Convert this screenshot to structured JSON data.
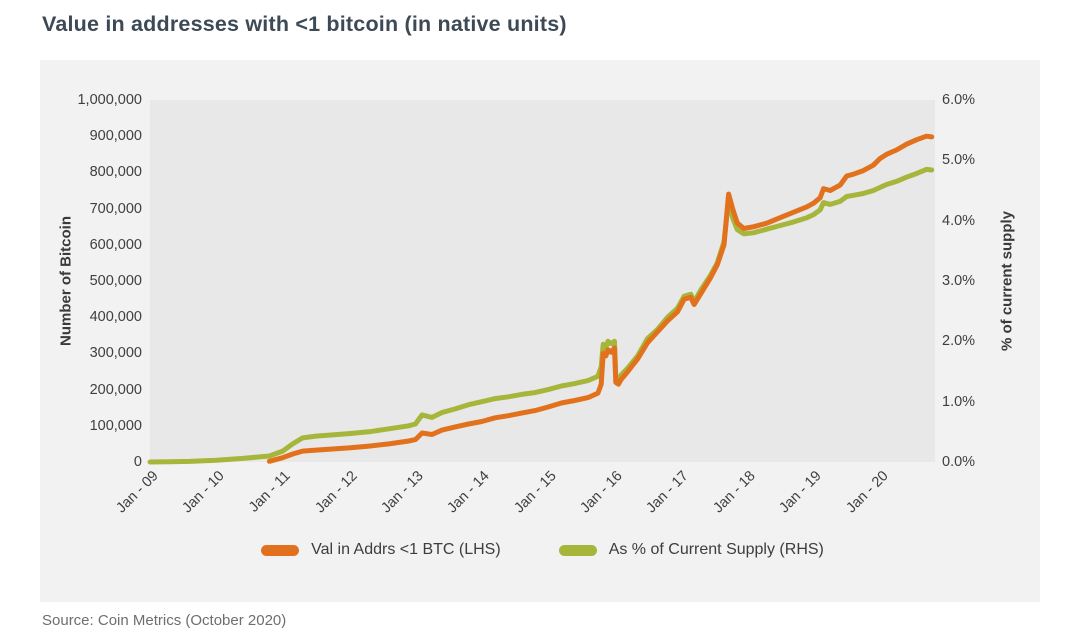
{
  "page": {
    "title": "Value in addresses with <1 bitcoin (in native units)",
    "source": "Source: Coin Metrics (October 2020)"
  },
  "colors": {
    "orange": "#e2711d",
    "green": "#a6b63a",
    "panel_bg": "#f2f2f2",
    "plot_bg": "#e8e8e8",
    "title_color": "#3d4a55",
    "axis_text": "#3f3f3f"
  },
  "chart_data": {
    "type": "line",
    "title": "Value in addresses with <1 bitcoin (in native units)",
    "ylabel_left": "Number of Bitcoin",
    "ylabel_right": "% of current supply",
    "x_range": [
      2009.0,
      2020.83
    ],
    "ylim_left": [
      0,
      1000000
    ],
    "ylim_right": [
      0,
      6
    ],
    "grid": false,
    "legend_position": "bottom",
    "x_ticks": [
      {
        "label": "Jan - 09",
        "year": 2009
      },
      {
        "label": "Jan - 10",
        "year": 2010
      },
      {
        "label": "Jan - 11",
        "year": 2011
      },
      {
        "label": "Jan - 12",
        "year": 2012
      },
      {
        "label": "Jan - 13",
        "year": 2013
      },
      {
        "label": "Jan - 14",
        "year": 2014
      },
      {
        "label": "Jan - 15",
        "year": 2015
      },
      {
        "label": "Jan - 16",
        "year": 2016
      },
      {
        "label": "Jan - 17",
        "year": 2017
      },
      {
        "label": "Jan - 18",
        "year": 2018
      },
      {
        "label": "Jan - 19",
        "year": 2019
      },
      {
        "label": "Jan - 20",
        "year": 2020
      }
    ],
    "left_ticks": [
      {
        "label": "1,000,000",
        "value": 1000000
      },
      {
        "label": "900,000",
        "value": 900000
      },
      {
        "label": "800,000",
        "value": 800000
      },
      {
        "label": "700,000",
        "value": 700000
      },
      {
        "label": "600,000",
        "value": 600000
      },
      {
        "label": "500,000",
        "value": 500000
      },
      {
        "label": "400,000",
        "value": 400000
      },
      {
        "label": "300,000",
        "value": 300000
      },
      {
        "label": "200,000",
        "value": 200000
      },
      {
        "label": "100,000",
        "value": 100000
      },
      {
        "label": "0",
        "value": 0
      }
    ],
    "right_ticks": [
      {
        "label": "6.0%",
        "value": 6
      },
      {
        "label": "5.0%",
        "value": 5
      },
      {
        "label": "4.0%",
        "value": 4
      },
      {
        "label": "3.0%",
        "value": 3
      },
      {
        "label": "2.0%",
        "value": 2
      },
      {
        "label": "1.0%",
        "value": 1
      },
      {
        "label": "0.0%",
        "value": 0
      }
    ],
    "legend": [
      {
        "label": "Val in Addrs <1 BTC (LHS)",
        "color": "#e2711d"
      },
      {
        "label": "As % of Current Supply (RHS)",
        "color": "#a6b63a"
      }
    ],
    "series": [
      {
        "name": "As % of Current Supply (RHS)",
        "axis": "right",
        "color": "#a6b63a",
        "points": [
          [
            2009.0,
            0
          ],
          [
            2009.3,
            0.005
          ],
          [
            2009.6,
            0.01
          ],
          [
            2010.0,
            0.03
          ],
          [
            2010.4,
            0.06
          ],
          [
            2010.8,
            0.1
          ],
          [
            2011.0,
            0.18
          ],
          [
            2011.15,
            0.3
          ],
          [
            2011.3,
            0.4
          ],
          [
            2011.5,
            0.43
          ],
          [
            2011.75,
            0.45
          ],
          [
            2012.0,
            0.47
          ],
          [
            2012.3,
            0.5
          ],
          [
            2012.6,
            0.55
          ],
          [
            2012.9,
            0.6
          ],
          [
            2013.0,
            0.63
          ],
          [
            2013.1,
            0.78
          ],
          [
            2013.25,
            0.74
          ],
          [
            2013.4,
            0.82
          ],
          [
            2013.6,
            0.88
          ],
          [
            2013.8,
            0.95
          ],
          [
            2014.0,
            1.0
          ],
          [
            2014.2,
            1.05
          ],
          [
            2014.4,
            1.08
          ],
          [
            2014.6,
            1.12
          ],
          [
            2014.8,
            1.15
          ],
          [
            2015.0,
            1.2
          ],
          [
            2015.2,
            1.26
          ],
          [
            2015.4,
            1.3
          ],
          [
            2015.6,
            1.35
          ],
          [
            2015.75,
            1.42
          ],
          [
            2015.8,
            1.58
          ],
          [
            2015.83,
            1.95
          ],
          [
            2015.87,
            1.9
          ],
          [
            2015.9,
            2.0
          ],
          [
            2015.95,
            1.96
          ],
          [
            2016.0,
            2.0
          ],
          [
            2016.02,
            1.4
          ],
          [
            2016.06,
            1.37
          ],
          [
            2016.1,
            1.44
          ],
          [
            2016.2,
            1.56
          ],
          [
            2016.35,
            1.76
          ],
          [
            2016.5,
            2.05
          ],
          [
            2016.65,
            2.2
          ],
          [
            2016.8,
            2.4
          ],
          [
            2016.95,
            2.55
          ],
          [
            2017.05,
            2.75
          ],
          [
            2017.15,
            2.78
          ],
          [
            2017.2,
            2.65
          ],
          [
            2017.3,
            2.85
          ],
          [
            2017.45,
            3.1
          ],
          [
            2017.55,
            3.3
          ],
          [
            2017.65,
            3.65
          ],
          [
            2017.72,
            4.35
          ],
          [
            2017.78,
            4.05
          ],
          [
            2017.85,
            3.85
          ],
          [
            2017.95,
            3.78
          ],
          [
            2018.1,
            3.8
          ],
          [
            2018.3,
            3.86
          ],
          [
            2018.5,
            3.92
          ],
          [
            2018.7,
            3.98
          ],
          [
            2018.9,
            4.05
          ],
          [
            2019.0,
            4.1
          ],
          [
            2019.1,
            4.18
          ],
          [
            2019.15,
            4.3
          ],
          [
            2019.25,
            4.27
          ],
          [
            2019.4,
            4.32
          ],
          [
            2019.5,
            4.4
          ],
          [
            2019.6,
            4.42
          ],
          [
            2019.75,
            4.45
          ],
          [
            2019.9,
            4.5
          ],
          [
            2020.0,
            4.55
          ],
          [
            2020.1,
            4.6
          ],
          [
            2020.25,
            4.65
          ],
          [
            2020.4,
            4.72
          ],
          [
            2020.55,
            4.78
          ],
          [
            2020.7,
            4.85
          ],
          [
            2020.78,
            4.84
          ]
        ]
      },
      {
        "name": "Val in Addrs <1 BTC (LHS)",
        "axis": "left",
        "color": "#e2711d",
        "points": [
          [
            2010.8,
            2000
          ],
          [
            2011.0,
            12000
          ],
          [
            2011.15,
            22000
          ],
          [
            2011.3,
            30000
          ],
          [
            2011.5,
            33000
          ],
          [
            2011.75,
            36000
          ],
          [
            2012.0,
            39000
          ],
          [
            2012.3,
            44000
          ],
          [
            2012.6,
            50000
          ],
          [
            2012.9,
            58000
          ],
          [
            2013.0,
            62000
          ],
          [
            2013.1,
            80000
          ],
          [
            2013.25,
            76000
          ],
          [
            2013.4,
            88000
          ],
          [
            2013.6,
            97000
          ],
          [
            2013.8,
            105000
          ],
          [
            2014.0,
            112000
          ],
          [
            2014.2,
            122000
          ],
          [
            2014.4,
            128000
          ],
          [
            2014.6,
            135000
          ],
          [
            2014.8,
            142000
          ],
          [
            2015.0,
            152000
          ],
          [
            2015.2,
            163000
          ],
          [
            2015.4,
            170000
          ],
          [
            2015.6,
            178000
          ],
          [
            2015.75,
            190000
          ],
          [
            2015.8,
            215000
          ],
          [
            2015.83,
            300000
          ],
          [
            2015.87,
            293000
          ],
          [
            2015.9,
            310000
          ],
          [
            2015.95,
            303000
          ],
          [
            2016.0,
            315000
          ],
          [
            2016.02,
            220000
          ],
          [
            2016.06,
            215000
          ],
          [
            2016.1,
            228000
          ],
          [
            2016.2,
            250000
          ],
          [
            2016.35,
            285000
          ],
          [
            2016.5,
            330000
          ],
          [
            2016.65,
            360000
          ],
          [
            2016.8,
            390000
          ],
          [
            2016.95,
            415000
          ],
          [
            2017.05,
            450000
          ],
          [
            2017.15,
            455000
          ],
          [
            2017.2,
            435000
          ],
          [
            2017.3,
            465000
          ],
          [
            2017.45,
            510000
          ],
          [
            2017.55,
            545000
          ],
          [
            2017.65,
            600000
          ],
          [
            2017.72,
            740000
          ],
          [
            2017.78,
            700000
          ],
          [
            2017.85,
            660000
          ],
          [
            2017.95,
            645000
          ],
          [
            2018.1,
            650000
          ],
          [
            2018.3,
            660000
          ],
          [
            2018.5,
            675000
          ],
          [
            2018.7,
            690000
          ],
          [
            2018.9,
            705000
          ],
          [
            2019.0,
            715000
          ],
          [
            2019.1,
            730000
          ],
          [
            2019.15,
            755000
          ],
          [
            2019.25,
            750000
          ],
          [
            2019.4,
            765000
          ],
          [
            2019.5,
            790000
          ],
          [
            2019.6,
            795000
          ],
          [
            2019.75,
            805000
          ],
          [
            2019.9,
            820000
          ],
          [
            2020.0,
            838000
          ],
          [
            2020.1,
            850000
          ],
          [
            2020.25,
            862000
          ],
          [
            2020.4,
            878000
          ],
          [
            2020.55,
            890000
          ],
          [
            2020.7,
            900000
          ],
          [
            2020.78,
            898000
          ]
        ]
      }
    ]
  }
}
